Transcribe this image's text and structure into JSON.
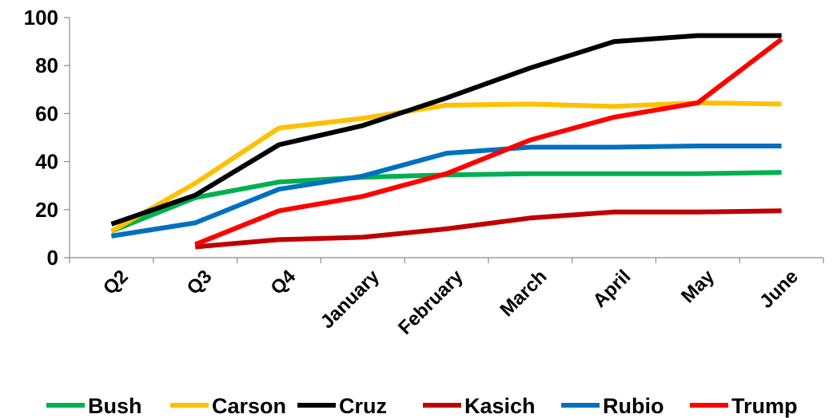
{
  "chart_data": {
    "type": "line",
    "title": "",
    "xlabel": "",
    "ylabel": "",
    "ylim": [
      0,
      100
    ],
    "yticks": [
      0,
      20,
      40,
      60,
      80,
      100
    ],
    "grid": false,
    "legend_position": "bottom",
    "categories": [
      "Q2",
      "Q3",
      "Q4",
      "January",
      "February",
      "March",
      "April",
      "May",
      "June"
    ],
    "series": [
      {
        "name": "Bush",
        "color": "#00b050",
        "values": [
          11,
          25,
          31.5,
          33.5,
          34.5,
          35,
          35,
          35,
          35.5
        ]
      },
      {
        "name": "Carson",
        "color": "#ffc000",
        "values": [
          11,
          31,
          54,
          58,
          63.5,
          64,
          63,
          64.5,
          64
        ]
      },
      {
        "name": "Cruz",
        "color": "#000000",
        "values": [
          14,
          26,
          47,
          55,
          66.5,
          79,
          90,
          92.5,
          92.5
        ]
      },
      {
        "name": "Kasich",
        "color": "#c00000",
        "values": [
          null,
          4.5,
          7.5,
          8.5,
          12,
          16.5,
          19,
          19,
          19.5
        ]
      },
      {
        "name": "Rubio",
        "color": "#0070c0",
        "values": [
          9,
          14.5,
          28.5,
          34,
          43.5,
          46,
          46,
          46.5,
          46.5
        ]
      },
      {
        "name": "Trump",
        "color": "#ff0000",
        "values": [
          null,
          5.5,
          19.5,
          25.5,
          35,
          49,
          58.5,
          64.5,
          91
        ]
      }
    ]
  }
}
